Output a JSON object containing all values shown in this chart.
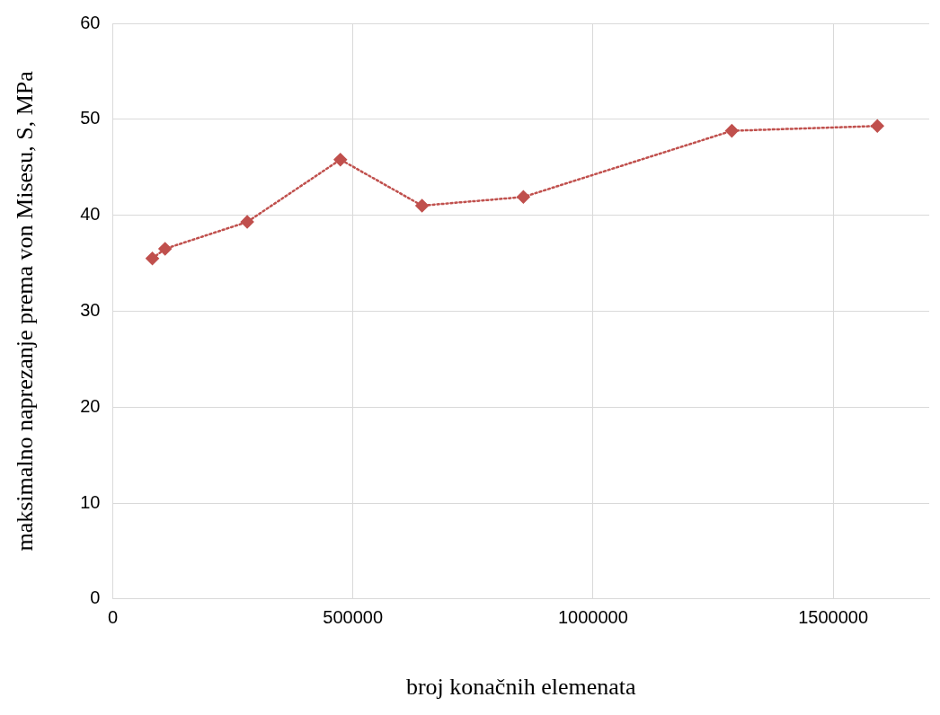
{
  "chart_data": {
    "type": "line",
    "xlabel": "broj konačnih elemenata",
    "ylabel": "maksimalno naprezanje prema von Misesu, S, MPa",
    "series": [
      {
        "color": "#c0504d",
        "x": [
          82500,
          109000,
          280000,
          474000,
          644000,
          855000,
          1289000,
          1592000
        ],
        "values": [
          35.5,
          36.5,
          39.3,
          45.8,
          41.0,
          41.9,
          48.8,
          49.3
        ]
      }
    ],
    "xlim": [
      0,
      1700000
    ],
    "xticks": [
      0,
      500000,
      1000000,
      1500000
    ],
    "ylim": [
      0,
      60
    ],
    "yticks": [
      0,
      10,
      20,
      30,
      40,
      50,
      60
    ],
    "grid": true,
    "legend": false,
    "marker": "diamond",
    "line_style": "dotted"
  }
}
